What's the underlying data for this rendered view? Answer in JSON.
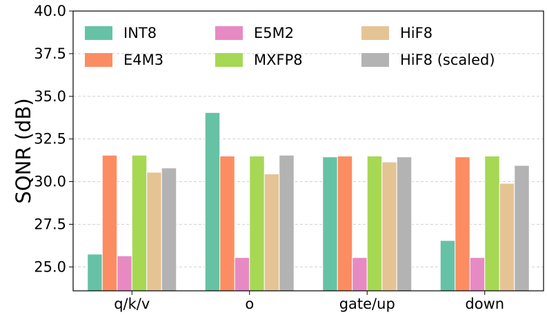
{
  "chart_data": {
    "type": "bar",
    "title": "",
    "xlabel": "",
    "ylabel": "SQNR (dB)",
    "ylim": [
      23.6,
      40.0
    ],
    "yticks": [
      "25.0",
      "27.5",
      "30.0",
      "32.5",
      "35.0",
      "37.5",
      "40.0"
    ],
    "ytick_values": [
      25.0,
      27.5,
      30.0,
      32.5,
      35.0,
      37.5,
      40.0
    ],
    "categories": [
      "q/k/v",
      "o",
      "gate/up",
      "down"
    ],
    "grid": true,
    "legend_position": "top",
    "series": [
      {
        "name": "INT8",
        "color": "#66c2a5",
        "values": [
          25.75,
          34.05,
          31.45,
          26.55
        ]
      },
      {
        "name": "E4M3",
        "color": "#fc8d62",
        "values": [
          31.55,
          31.5,
          31.5,
          31.45
        ]
      },
      {
        "name": "E5M2",
        "color": "#e78ac3",
        "values": [
          25.65,
          25.55,
          25.55,
          25.55
        ]
      },
      {
        "name": "MXFP8",
        "color": "#a6d854",
        "values": [
          31.55,
          31.5,
          31.5,
          31.5
        ]
      },
      {
        "name": "HiF8",
        "color": "#e5c494",
        "values": [
          30.55,
          30.45,
          31.15,
          29.9
        ]
      },
      {
        "name": "HiF8 (scaled)",
        "color": "#b3b3b3",
        "values": [
          30.8,
          31.55,
          31.45,
          30.95
        ]
      }
    ]
  }
}
